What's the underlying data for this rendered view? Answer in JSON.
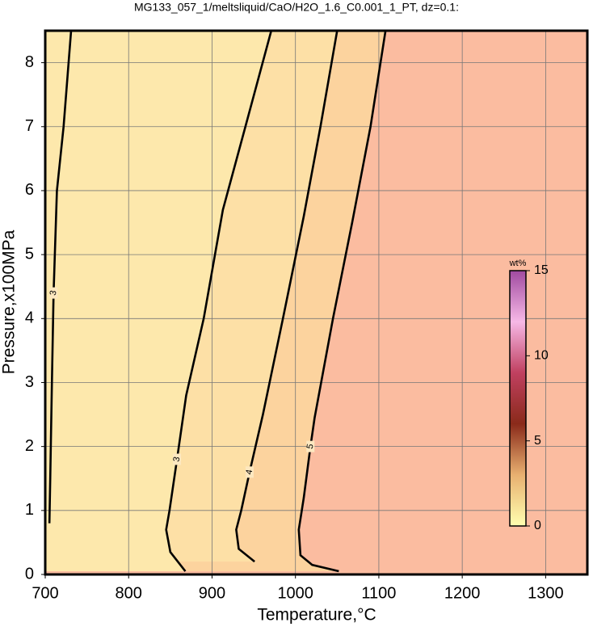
{
  "chart_data": {
    "type": "contour",
    "title": "MG133_057_1/meltsliquid/CaO/H2O_1.6_C0.001_1_PT, dz=0.1:",
    "x_label": "Temperature,°C",
    "y_label": "Pressure,x100MPa",
    "xlim": [
      700,
      1350
    ],
    "ylim": [
      0,
      8.5
    ],
    "xticks": [
      700,
      800,
      900,
      1000,
      1100,
      1200,
      1300
    ],
    "yticks": [
      0,
      1,
      2,
      3,
      4,
      5,
      6,
      7,
      8
    ],
    "grid": true,
    "background": "#fbbca0",
    "contours": [
      {
        "level": 5,
        "color": "#fcd39e",
        "x": [
          1108,
          1090,
          1068,
          1045,
          1023,
          1018,
          1010,
          1004,
          1006,
          1020,
          1052
        ],
        "y": [
          8.5,
          7,
          5.5,
          4,
          2.45,
          2,
          1.2,
          0.7,
          0.3,
          0.15,
          0.05
        ]
      },
      {
        "level": 4,
        "color": "#fde0a6",
        "x": [
          1050,
          1030,
          1010,
          985,
          961,
          945,
          935,
          929,
          932,
          951
        ],
        "y": [
          8.5,
          7,
          5.6,
          4,
          2.5,
          1.6,
          1,
          0.7,
          0.4,
          0.2
        ]
      },
      {
        "level": 3,
        "color": "#fde8ac",
        "x": [
          971,
          940,
          913,
          890,
          869,
          858,
          849,
          845,
          850,
          868
        ],
        "y": [
          8.5,
          7,
          5.7,
          4,
          2.8,
          1.8,
          1,
          0.7,
          0.35,
          0.05
        ]
      },
      {
        "level": 3,
        "color": "#fde8ac",
        "x": [
          731,
          722,
          714,
          710,
          708,
          706,
          705
        ],
        "y": [
          8.5,
          7,
          6,
          4.4,
          3,
          1.5,
          0.8
        ]
      }
    ],
    "colorbar": {
      "label": "wt%",
      "lim": [
        0,
        15
      ],
      "ticks": [
        0,
        5,
        10,
        15
      ],
      "colors": [
        "#ffffb0",
        "#e8b070",
        "#8a2a1a",
        "#c04060",
        "#f6b8e6",
        "#a04aa0"
      ]
    }
  }
}
